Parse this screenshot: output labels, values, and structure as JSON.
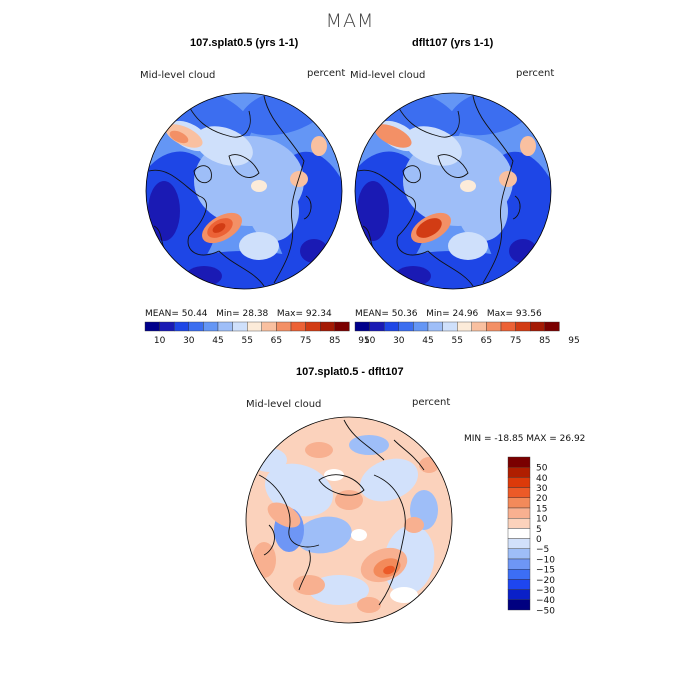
{
  "season": "MAM",
  "panels": [
    {
      "title": "107.splat0.5 (yrs 1-1)",
      "variable": "Mid-level cloud",
      "units": "percent",
      "mean_label": "MEAN=",
      "mean": "50.44",
      "min_label": "Min=",
      "min": "28.38",
      "max_label": "Max=",
      "max": "92.34"
    },
    {
      "title": "dflt107 (yrs 1-1)",
      "variable": "Mid-level cloud",
      "units": "percent",
      "mean_label": "MEAN=",
      "mean": "50.36",
      "min_label": "Min=",
      "min": "24.96",
      "max_label": "Max=",
      "max": "93.56"
    }
  ],
  "diff_panel": {
    "title": "107.splat0.5 - dflt107",
    "variable": "Mid-level cloud",
    "units": "percent",
    "range_text": "MIN = -18.85 MAX =  26.92"
  },
  "colors": {
    "abs_scale": [
      "#00008b",
      "#1a1ab4",
      "#1e46e6",
      "#3c6ef0",
      "#6496f5",
      "#9ebef8",
      "#cfe0fb",
      "#fcebd9",
      "#f9c0a0",
      "#f39066",
      "#ec6236",
      "#d23c14",
      "#a41a04",
      "#7a0000"
    ],
    "diff_scale": [
      "#000080",
      "#0a20c8",
      "#1e46f0",
      "#3c6ef5",
      "#6e96f5",
      "#9ebef8",
      "#d2e1fb",
      "#ffffff",
      "#fbd2bc",
      "#f8b090",
      "#f38a5a",
      "#ec5a28",
      "#dc3a0a",
      "#b01e00",
      "#7a0000"
    ],
    "land_outline": "#111111"
  },
  "chart_data": [
    {
      "type": "heatmap",
      "projection": "polar-stereographic",
      "title": "107.splat0.5 (yrs 1-1)",
      "variable": "Mid-level cloud",
      "units": "percent",
      "colorbar_levels": [
        10,
        30,
        45,
        55,
        65,
        75,
        85,
        95
      ],
      "stats": {
        "mean": 50.44,
        "min": 28.38,
        "max": 92.34
      }
    },
    {
      "type": "heatmap",
      "projection": "polar-stereographic",
      "title": "dflt107 (yrs 1-1)",
      "variable": "Mid-level cloud",
      "units": "percent",
      "colorbar_levels": [
        10,
        30,
        45,
        55,
        65,
        75,
        85,
        95
      ],
      "stats": {
        "mean": 50.36,
        "min": 24.96,
        "max": 93.56
      }
    },
    {
      "type": "heatmap",
      "projection": "polar-stereographic",
      "title": "107.splat0.5 - dflt107",
      "variable": "Mid-level cloud",
      "units": "percent",
      "colorbar_levels": [
        50,
        40,
        30,
        20,
        15,
        10,
        5,
        0,
        -5,
        -10,
        -15,
        -20,
        -30,
        -40,
        -50
      ],
      "stats": {
        "min": -18.85,
        "max": 26.92
      }
    }
  ]
}
